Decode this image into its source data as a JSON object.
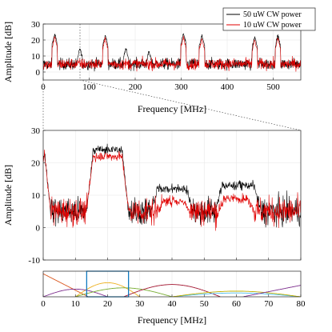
{
  "chart_data": [
    {
      "type": "line",
      "panel": "top-overview",
      "xlabel": "Frequency [MHz]",
      "ylabel": "Amplitude [dB]",
      "xlim": [
        0,
        560
      ],
      "ylim": [
        -5,
        30
      ],
      "xticks": [
        0,
        100,
        200,
        300,
        400,
        500
      ],
      "yticks": [
        0,
        10,
        20,
        30
      ],
      "grid": true,
      "legend": {
        "placement": "top-right",
        "entries": [
          "50 uW CW power",
          "10 uW CW power"
        ]
      },
      "series": [
        {
          "name": "50 uW CW power",
          "color": "#000000",
          "noise_floor_db": 5,
          "peaks": [
            {
              "x": 25,
              "y": 24
            },
            {
              "x": 80,
              "y": 15
            },
            {
              "x": 135,
              "y": 23
            },
            {
              "x": 180,
              "y": 15
            },
            {
              "x": 230,
              "y": 13
            },
            {
              "x": 305,
              "y": 24
            },
            {
              "x": 345,
              "y": 23
            },
            {
              "x": 460,
              "y": 22
            },
            {
              "x": 510,
              "y": 23
            }
          ]
        },
        {
          "name": "10 uW CW power",
          "color": "#e00000",
          "noise_floor_db": 5,
          "peaks": [
            {
              "x": 25,
              "y": 22
            },
            {
              "x": 135,
              "y": 21
            },
            {
              "x": 305,
              "y": 22
            },
            {
              "x": 345,
              "y": 21
            },
            {
              "x": 460,
              "y": 20
            },
            {
              "x": 510,
              "y": 21
            }
          ]
        }
      ],
      "zoom_marker_x": 80
    },
    {
      "type": "line",
      "panel": "middle-zoom",
      "xlabel": "",
      "ylabel": "Amplitude [dB]",
      "xlim": [
        0,
        80
      ],
      "ylim": [
        -10,
        30
      ],
      "xticks": [
        0,
        10,
        20,
        30,
        40,
        50,
        60,
        70,
        80
      ],
      "yticks": [
        -10,
        0,
        10,
        20,
        30
      ],
      "grid": true,
      "series": [
        {
          "name": "50 uW CW power",
          "color": "#000000",
          "noise_floor_db": 5,
          "features": [
            {
              "x_start": 0,
              "x_end": 0.8,
              "y": 25
            },
            {
              "x_start": 15,
              "x_end": 25,
              "y": 24
            },
            {
              "x_start": 35,
              "x_end": 45,
              "y": 12
            },
            {
              "x_start": 55,
              "x_end": 66,
              "y": 13
            }
          ]
        },
        {
          "name": "10 uW CW power",
          "color": "#e00000",
          "noise_floor_db": 5,
          "features": [
            {
              "x_start": 0,
              "x_end": 0.8,
              "y": 24
            },
            {
              "x_start": 15,
              "x_end": 25,
              "y": 22
            },
            {
              "x_start": 37,
              "x_end": 44,
              "y": 8
            },
            {
              "x_start": 56,
              "x_end": 64,
              "y": 9
            }
          ]
        }
      ]
    },
    {
      "type": "line",
      "panel": "bottom-windows",
      "xlabel": "Frequency [MHz]",
      "ylabel": "",
      "xlim": [
        0,
        80
      ],
      "ylim": [
        0,
        1
      ],
      "xticks": [
        0,
        10,
        20,
        30,
        40,
        50,
        60,
        70,
        80
      ],
      "grid": true,
      "highlight_box": {
        "x": [
          13.5,
          26.5
        ],
        "color": "#0072bd"
      },
      "series": [
        {
          "color": "#d95319",
          "shape": "decay",
          "x0": 0,
          "x1": 14,
          "peak": 0.9
        },
        {
          "color": "#edb120",
          "shape": "bump",
          "x0": 10,
          "x1": 30,
          "peak": 0.55
        },
        {
          "color": "#7e2f8e",
          "shape": "bump",
          "x0": 0,
          "x1": 20,
          "peak": 0.3
        },
        {
          "color": "#77ac30",
          "shape": "bump",
          "x0": 10,
          "x1": 40,
          "peak": 0.35
        },
        {
          "color": "#a2142f",
          "shape": "bump",
          "x0": 25,
          "x1": 55,
          "peak": 0.48
        },
        {
          "color": "#4dbeee",
          "shape": "bump",
          "x0": 40,
          "x1": 80,
          "peak": 0.15
        },
        {
          "color": "#bfb000",
          "shape": "bump",
          "x0": 40,
          "x1": 80,
          "peak": 0.22
        },
        {
          "color": "#7e2f8e",
          "shape": "rise",
          "x0": 62,
          "x1": 80,
          "peak": 0.45
        }
      ]
    }
  ]
}
